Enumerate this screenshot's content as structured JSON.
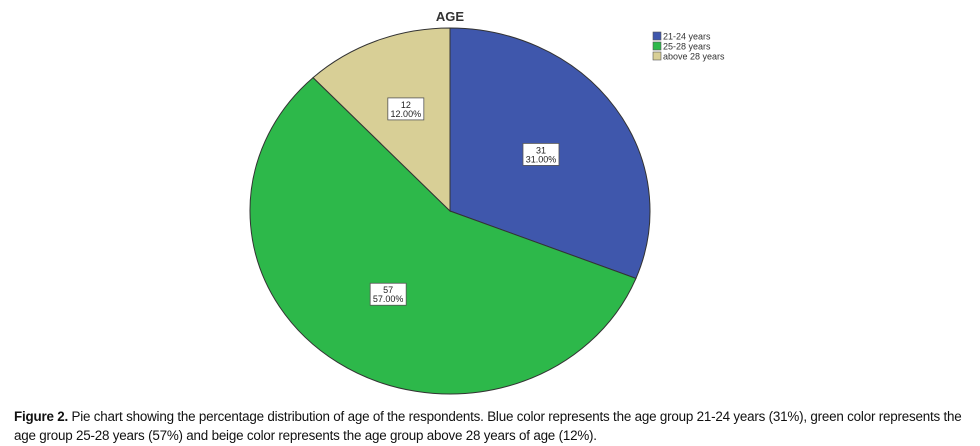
{
  "chart_data": {
    "type": "pie",
    "title": "AGE",
    "categories": [
      "21-24 years",
      "25-28 years",
      "above 28 years"
    ],
    "values": [
      31,
      57,
      12
    ],
    "percent_labels": [
      "31.00%",
      "57.00%",
      "12.00%"
    ],
    "colors": [
      "#3f57ac",
      "#2db84a",
      "#d8cf96"
    ],
    "legend": "top-right",
    "start_angle": "12 o'clock, clockwise"
  },
  "caption": {
    "label": "Figure 2.",
    "text": " Pie chart showing the percentage distribution of age of the respondents. Blue color represents the age group 21-24 years (31%), green color represents the age group 25-28 years (57%) and beige color represents the age group above 28 years of age (12%)."
  }
}
